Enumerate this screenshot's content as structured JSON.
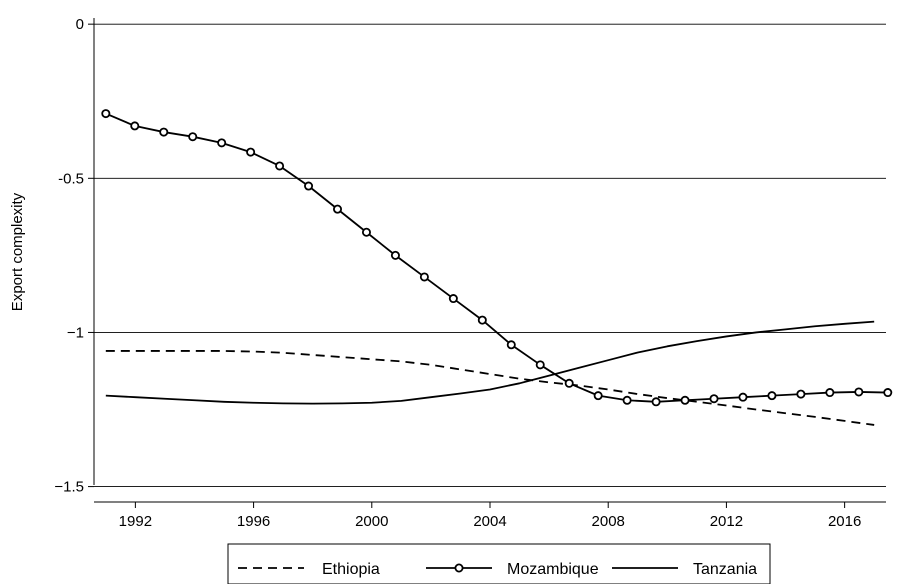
{
  "chart_data": {
    "type": "line",
    "title": "",
    "xlabel": "",
    "ylabel": "Export complexity",
    "xlim": [
      1990.6,
      2017.4
    ],
    "ylim": [
      -1.55,
      0.02
    ],
    "grid": true,
    "legend_position": "bottom",
    "x_ticks": [
      1992,
      1996,
      2000,
      2004,
      2008,
      2012,
      2016
    ],
    "x_tick_labels": [
      "1992",
      "1996",
      "2000",
      "2004",
      "2008",
      "2012",
      "2016"
    ],
    "y_ticks": [
      0,
      -0.5,
      -1,
      -1.5
    ],
    "y_tick_labels": [
      "0",
      "-0.5",
      "−1",
      "−1.5"
    ],
    "series": [
      {
        "name": "Ethiopia",
        "style": "dashed",
        "color": "#000000",
        "x": [
          1991,
          1992,
          1993,
          1994,
          1995,
          1996,
          1997,
          1998,
          1999,
          2000,
          2001,
          2002,
          2003,
          2004,
          2005,
          2006,
          2007,
          2008,
          2009,
          2010,
          2011,
          2012,
          2013,
          2014,
          2015,
          2016,
          2017
        ],
        "values": [
          -1.06,
          -1.06,
          -1.06,
          -1.06,
          -1.06,
          -1.062,
          -1.066,
          -1.073,
          -1.08,
          -1.087,
          -1.094,
          -1.105,
          -1.12,
          -1.135,
          -1.15,
          -1.162,
          -1.172,
          -1.185,
          -1.2,
          -1.213,
          -1.225,
          -1.237,
          -1.25,
          -1.262,
          -1.274,
          -1.287,
          -1.3
        ]
      },
      {
        "name": "Mozambique",
        "style": "solid-markers",
        "color": "#000000",
        "x": [
          1991,
          1991.98,
          1992.96,
          1993.94,
          1994.92,
          1995.9,
          1996.88,
          1997.86,
          1998.84,
          1999.82,
          2000.8,
          2001.78,
          2002.76,
          2003.74,
          2004.72,
          2005.7,
          2006.68,
          2007.66,
          2008.64,
          2009.62,
          2010.6,
          2011.58,
          2012.56,
          2013.54,
          2014.52,
          2015.5,
          2016.48,
          2017.46
        ],
        "values": [
          -0.29,
          -0.33,
          -0.35,
          -0.365,
          -0.385,
          -0.415,
          -0.46,
          -0.525,
          -0.6,
          -0.675,
          -0.75,
          -0.82,
          -0.89,
          -0.96,
          -1.04,
          -1.105,
          -1.165,
          -1.205,
          -1.22,
          -1.225,
          -1.22,
          -1.215,
          -1.21,
          -1.205,
          -1.2,
          -1.195,
          -1.193,
          -1.195
        ]
      },
      {
        "name": "Tanzania",
        "style": "solid",
        "color": "#000000",
        "x": [
          1991,
          1992,
          1993,
          1994,
          1995,
          1996,
          1997,
          1998,
          1999,
          2000,
          2001,
          2002,
          2003,
          2004,
          2005,
          2006,
          2007,
          2008,
          2009,
          2010,
          2011,
          2012,
          2013,
          2014,
          2015,
          2016,
          2017
        ],
        "values": [
          -1.205,
          -1.21,
          -1.215,
          -1.22,
          -1.225,
          -1.228,
          -1.23,
          -1.231,
          -1.23,
          -1.228,
          -1.222,
          -1.21,
          -1.198,
          -1.185,
          -1.165,
          -1.14,
          -1.115,
          -1.09,
          -1.065,
          -1.045,
          -1.028,
          -1.013,
          -1.0,
          -0.99,
          -0.98,
          -0.972,
          -0.965
        ]
      }
    ]
  }
}
